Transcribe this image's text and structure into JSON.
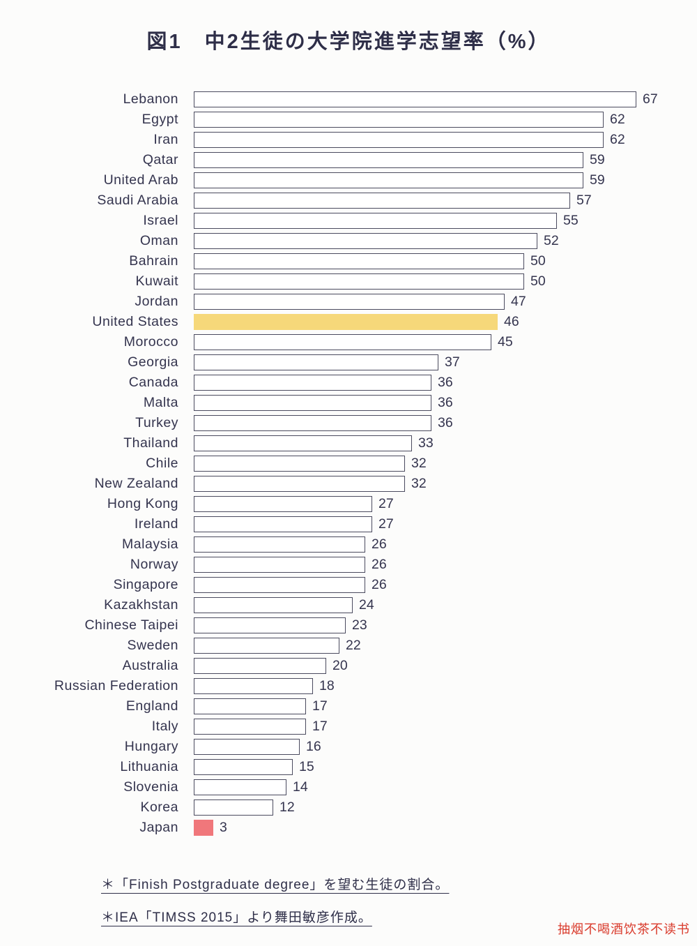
{
  "title": "図1　中2生徒の大学院進学志望率（%）",
  "chart_data": {
    "type": "bar",
    "orientation": "horizontal",
    "title": "図1　中2生徒の大学院進学志望率（%）",
    "xlabel": "",
    "ylabel": "",
    "xlim": [
      0,
      70
    ],
    "grid": false,
    "legend": "none",
    "categories": [
      "Lebanon",
      "Egypt",
      "Iran",
      "Qatar",
      "United Arab",
      "Saudi Arabia",
      "Israel",
      "Oman",
      "Bahrain",
      "Kuwait",
      "Jordan",
      "United States",
      "Morocco",
      "Georgia",
      "Canada",
      "Malta",
      "Turkey",
      "Thailand",
      "Chile",
      "New Zealand",
      "Hong Kong",
      "Ireland",
      "Malaysia",
      "Norway",
      "Singapore",
      "Kazakhstan",
      "Chinese Taipei",
      "Sweden",
      "Australia",
      "Russian Federation",
      "England",
      "Italy",
      "Hungary",
      "Lithuania",
      "Slovenia",
      "Korea",
      "Japan"
    ],
    "values": [
      67,
      62,
      62,
      59,
      59,
      57,
      55,
      52,
      50,
      50,
      47,
      46,
      45,
      37,
      36,
      36,
      36,
      33,
      32,
      32,
      27,
      27,
      26,
      26,
      26,
      24,
      23,
      22,
      20,
      18,
      17,
      17,
      16,
      15,
      14,
      12,
      3
    ],
    "bar_fill_default": "#ffffff",
    "bar_border_color": "#4a4a5e",
    "highlights": {
      "United States": "#f6d87a",
      "Japan": "#f0777b"
    }
  },
  "footnotes": [
    "＊「Finish Postgraduate degree」を望む生徒の割合。",
    "＊IEA「TIMSS 2015」より舞田敏彦作成。"
  ],
  "watermark": "抽烟不喝酒饮茶不读书"
}
